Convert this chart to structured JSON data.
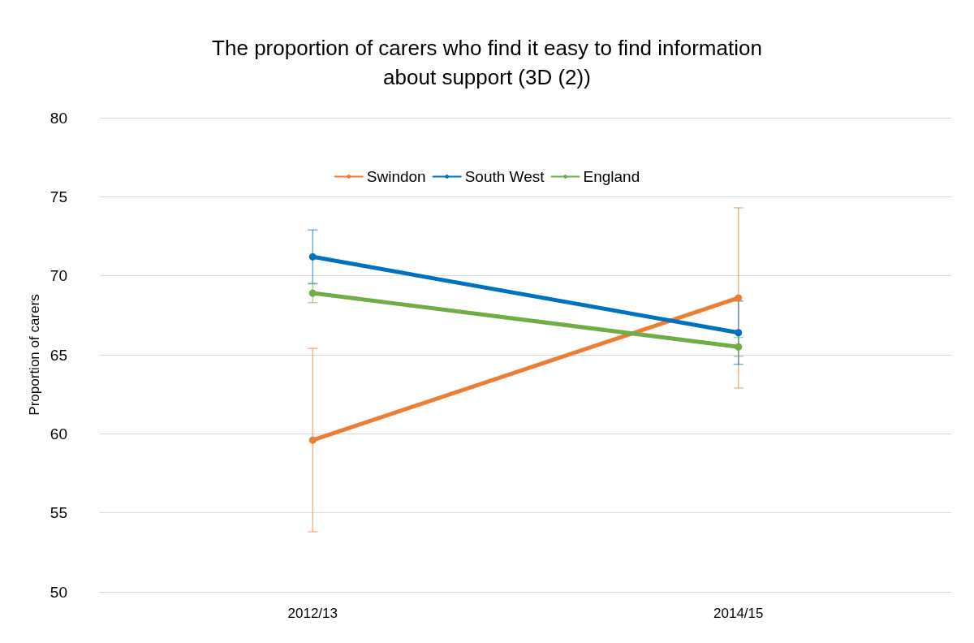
{
  "chart_data": {
    "type": "line",
    "title": "The proportion of carers who find it easy to find information\nabout support (3D (2))",
    "ylabel": "Proportion of carers",
    "categories": [
      "2012/13",
      "2014/15"
    ],
    "series": [
      {
        "name": "Swindon",
        "color": "#ed7d31",
        "values": [
          59.6,
          68.6
        ],
        "errors": [
          [
            53.8,
            65.4
          ],
          [
            62.9,
            74.3
          ]
        ]
      },
      {
        "name": "South West",
        "color": "#0070c0",
        "values": [
          71.2,
          66.4
        ],
        "errors": [
          [
            69.5,
            72.9
          ],
          [
            64.4,
            68.4
          ]
        ]
      },
      {
        "name": "England",
        "color": "#70ad47",
        "values": [
          68.9,
          65.5
        ],
        "errors": [
          [
            68.3,
            69.5
          ],
          [
            64.9,
            66.1
          ]
        ]
      }
    ],
    "ylim": [
      50,
      80
    ],
    "yticks": [
      50,
      55,
      60,
      65,
      70,
      75,
      80
    ],
    "grid": "y",
    "legend": "top",
    "marker": "circle",
    "line_style": "solid"
  }
}
